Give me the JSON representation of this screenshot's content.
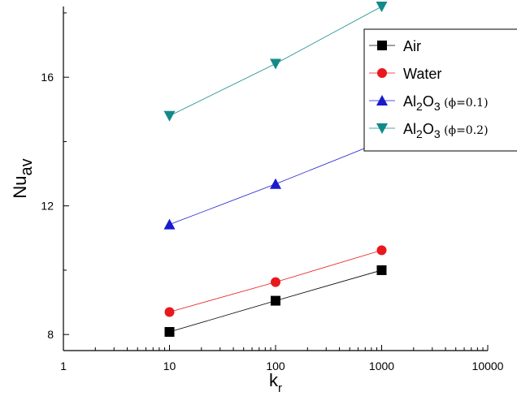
{
  "chart_data": {
    "type": "line",
    "x_scale": "log",
    "xlim": [
      1,
      10000
    ],
    "ylim": [
      7.5,
      18.2
    ],
    "x_ticks": [
      1,
      10,
      100,
      1000,
      10000
    ],
    "x_tick_labels": [
      "1",
      "10",
      "100",
      "1000",
      "10000"
    ],
    "y_ticks": [
      8,
      12,
      16
    ],
    "y_tick_labels": [
      "8",
      "12",
      "16"
    ],
    "xlabel": "k",
    "xlabel_sub": "r",
    "ylabel": "Nu",
    "ylabel_sub": "av",
    "grid": false,
    "legend_position": "top-right",
    "x": [
      10,
      100,
      1000
    ],
    "series": [
      {
        "name": "Air",
        "marker": "square",
        "color": "#000000",
        "values": [
          8.08,
          9.05,
          10.0
        ]
      },
      {
        "name": "Water",
        "marker": "circle",
        "color": "#e8191e",
        "values": [
          8.7,
          9.63,
          10.62
        ]
      },
      {
        "name": "Al2O3 (ϕ=0.1)",
        "name_main": "Al",
        "name_sub1": "2",
        "name_mid": "O",
        "name_sub2": "3",
        "name_note": "(ϕ=0.1)",
        "marker": "triangle-up",
        "color": "#1a1acf",
        "values": [
          11.42,
          12.68,
          14.0
        ]
      },
      {
        "name": "Al2O3 (ϕ=0.2)",
        "name_main": "Al",
        "name_sub1": "2",
        "name_mid": "O",
        "name_sub2": "3",
        "name_note": "(ϕ=0.2)",
        "marker": "triangle-down",
        "color": "#138a8a",
        "values": [
          14.8,
          16.42,
          18.2
        ]
      }
    ]
  }
}
